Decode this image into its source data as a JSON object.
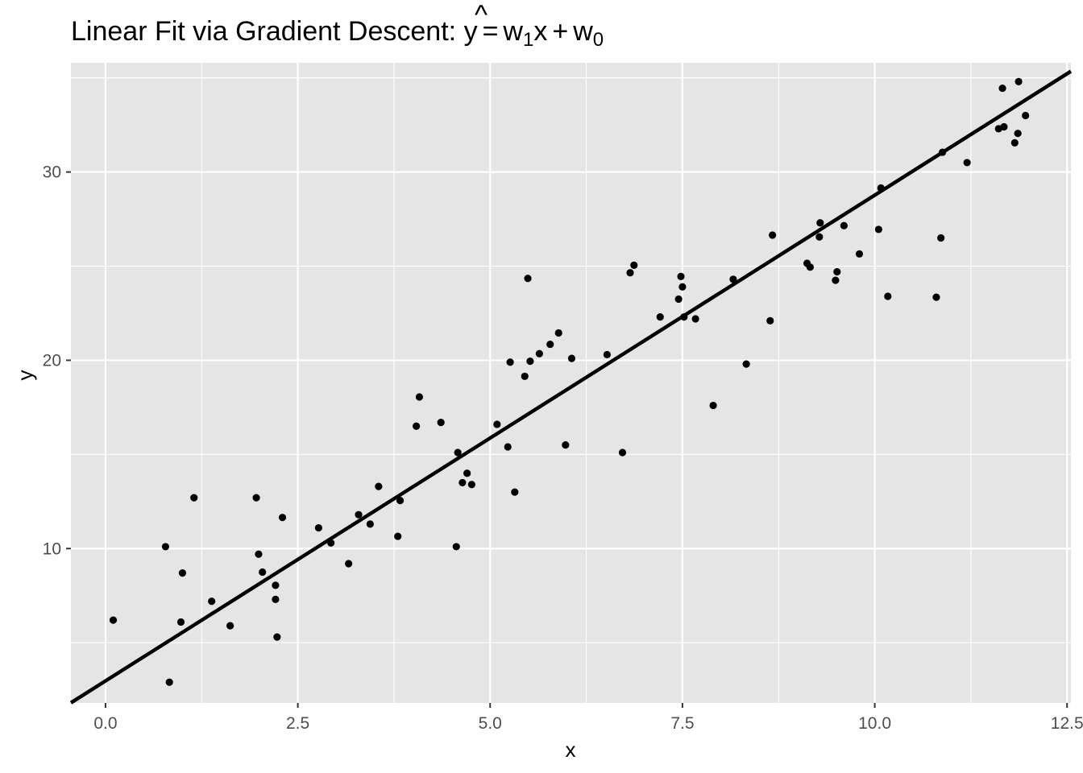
{
  "chart_data": {
    "type": "scatter",
    "title": {
      "main": "Linear Fit via Gradient Descent: ",
      "yhat": "y",
      "hat": "^",
      "eq": "=",
      "w": "w",
      "sub1": "1",
      "x": "x",
      "plus": "+",
      "sub0": "0"
    },
    "xlabel": "x",
    "ylabel": "y",
    "xlim": [
      -0.45,
      12.55
    ],
    "ylim": [
      1.8,
      35.8
    ],
    "x_ticks": [
      0.0,
      2.5,
      5.0,
      7.5,
      10.0,
      12.5
    ],
    "x_tick_labels": [
      "0.0",
      "2.5",
      "5.0",
      "7.5",
      "10.0",
      "12.5"
    ],
    "y_ticks": [
      10,
      20,
      30
    ],
    "y_tick_labels": [
      "10",
      "20",
      "30"
    ],
    "grid": true,
    "panel_background": "#e5e5e5",
    "grid_color": "#ffffff",
    "point_color": "#000000",
    "line_color": "#000000",
    "fit_line": {
      "slope": 2.58,
      "intercept": 2.97
    },
    "points": [
      [
        0.1,
        6.2
      ],
      [
        0.78,
        10.1
      ],
      [
        0.83,
        2.9
      ],
      [
        0.98,
        6.1
      ],
      [
        1.0,
        8.7
      ],
      [
        1.15,
        12.7
      ],
      [
        1.38,
        7.2
      ],
      [
        1.62,
        5.9
      ],
      [
        1.96,
        12.7
      ],
      [
        1.99,
        9.7
      ],
      [
        2.04,
        8.75
      ],
      [
        2.21,
        8.05
      ],
      [
        2.21,
        7.3
      ],
      [
        2.23,
        5.3
      ],
      [
        2.3,
        11.65
      ],
      [
        2.77,
        11.1
      ],
      [
        2.93,
        10.3
      ],
      [
        3.16,
        9.2
      ],
      [
        3.29,
        11.8
      ],
      [
        3.44,
        11.3
      ],
      [
        3.55,
        13.3
      ],
      [
        3.8,
        10.65
      ],
      [
        3.83,
        12.55
      ],
      [
        4.04,
        16.5
      ],
      [
        4.08,
        18.05
      ],
      [
        4.36,
        16.7
      ],
      [
        4.56,
        10.1
      ],
      [
        4.58,
        15.1
      ],
      [
        4.64,
        13.5
      ],
      [
        4.7,
        14.0
      ],
      [
        4.76,
        13.4
      ],
      [
        5.09,
        16.6
      ],
      [
        5.23,
        15.4
      ],
      [
        5.26,
        19.9
      ],
      [
        5.32,
        13.0
      ],
      [
        5.45,
        19.15
      ],
      [
        5.49,
        24.35
      ],
      [
        5.52,
        19.95
      ],
      [
        5.64,
        20.35
      ],
      [
        5.78,
        20.85
      ],
      [
        5.89,
        21.45
      ],
      [
        5.98,
        15.5
      ],
      [
        6.06,
        20.1
      ],
      [
        6.52,
        20.3
      ],
      [
        6.72,
        15.1
      ],
      [
        6.82,
        24.65
      ],
      [
        6.87,
        25.05
      ],
      [
        7.21,
        22.3
      ],
      [
        7.45,
        23.25
      ],
      [
        7.48,
        24.45
      ],
      [
        7.5,
        23.9
      ],
      [
        7.52,
        22.3
      ],
      [
        7.67,
        22.2
      ],
      [
        7.9,
        17.6
      ],
      [
        8.16,
        24.3
      ],
      [
        8.33,
        19.8
      ],
      [
        8.64,
        22.1
      ],
      [
        8.67,
        26.65
      ],
      [
        9.12,
        25.15
      ],
      [
        9.16,
        24.95
      ],
      [
        9.28,
        26.55
      ],
      [
        9.29,
        27.3
      ],
      [
        9.49,
        24.25
      ],
      [
        9.51,
        24.7
      ],
      [
        9.6,
        27.15
      ],
      [
        9.8,
        25.65
      ],
      [
        10.05,
        26.95
      ],
      [
        10.08,
        29.15
      ],
      [
        10.17,
        23.4
      ],
      [
        10.8,
        23.35
      ],
      [
        10.86,
        26.5
      ],
      [
        10.88,
        31.05
      ],
      [
        11.2,
        30.5
      ],
      [
        11.61,
        32.3
      ],
      [
        11.66,
        34.45
      ],
      [
        11.68,
        32.4
      ],
      [
        11.82,
        31.55
      ],
      [
        11.86,
        32.05
      ],
      [
        11.87,
        34.8
      ],
      [
        11.96,
        33.0
      ]
    ]
  }
}
